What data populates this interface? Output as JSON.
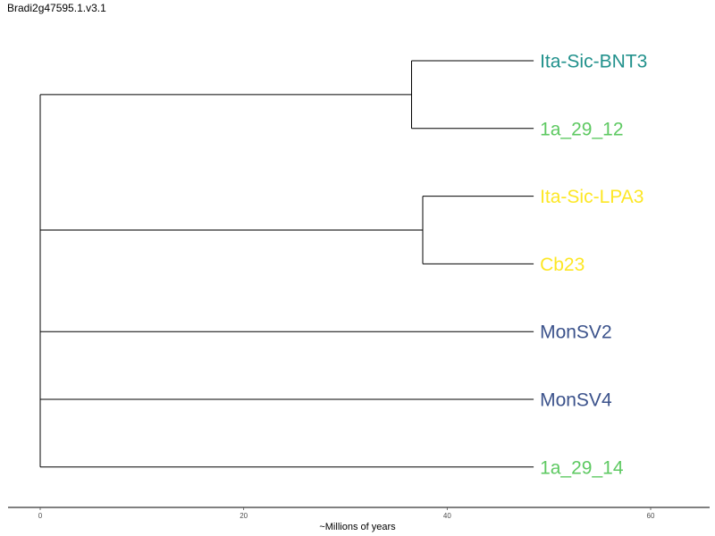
{
  "title": "Bradi2g47595.1.v3.1",
  "axis": {
    "label": "~Millions of years",
    "min": 0,
    "max": 60,
    "ticks": [
      0,
      20,
      40,
      60
    ]
  },
  "chart_data": {
    "type": "dendrogram",
    "root_x": 0,
    "clades": [
      {
        "name": "clade-a",
        "join_x": 36.5,
        "leaves": [
          0,
          1
        ]
      },
      {
        "name": "clade-b",
        "join_x": 37.6,
        "leaves": [
          2,
          3
        ]
      }
    ],
    "leaves": [
      {
        "label": "Ita-Sic-BNT3",
        "x": 48.5,
        "color": "#21918c"
      },
      {
        "label": "1a_29_12",
        "x": 48.5,
        "color": "#5ec962"
      },
      {
        "label": "Ita-Sic-LPA3",
        "x": 48.5,
        "color": "#fde725"
      },
      {
        "label": "Cb23",
        "x": 48.5,
        "color": "#fde725"
      },
      {
        "label": "MonSV2",
        "x": 48.5,
        "color": "#3b528b"
      },
      {
        "label": "MonSV4",
        "x": 48.5,
        "color": "#3b528b"
      },
      {
        "label": "1a_29_14",
        "x": 48.5,
        "color": "#5ec962"
      }
    ]
  }
}
